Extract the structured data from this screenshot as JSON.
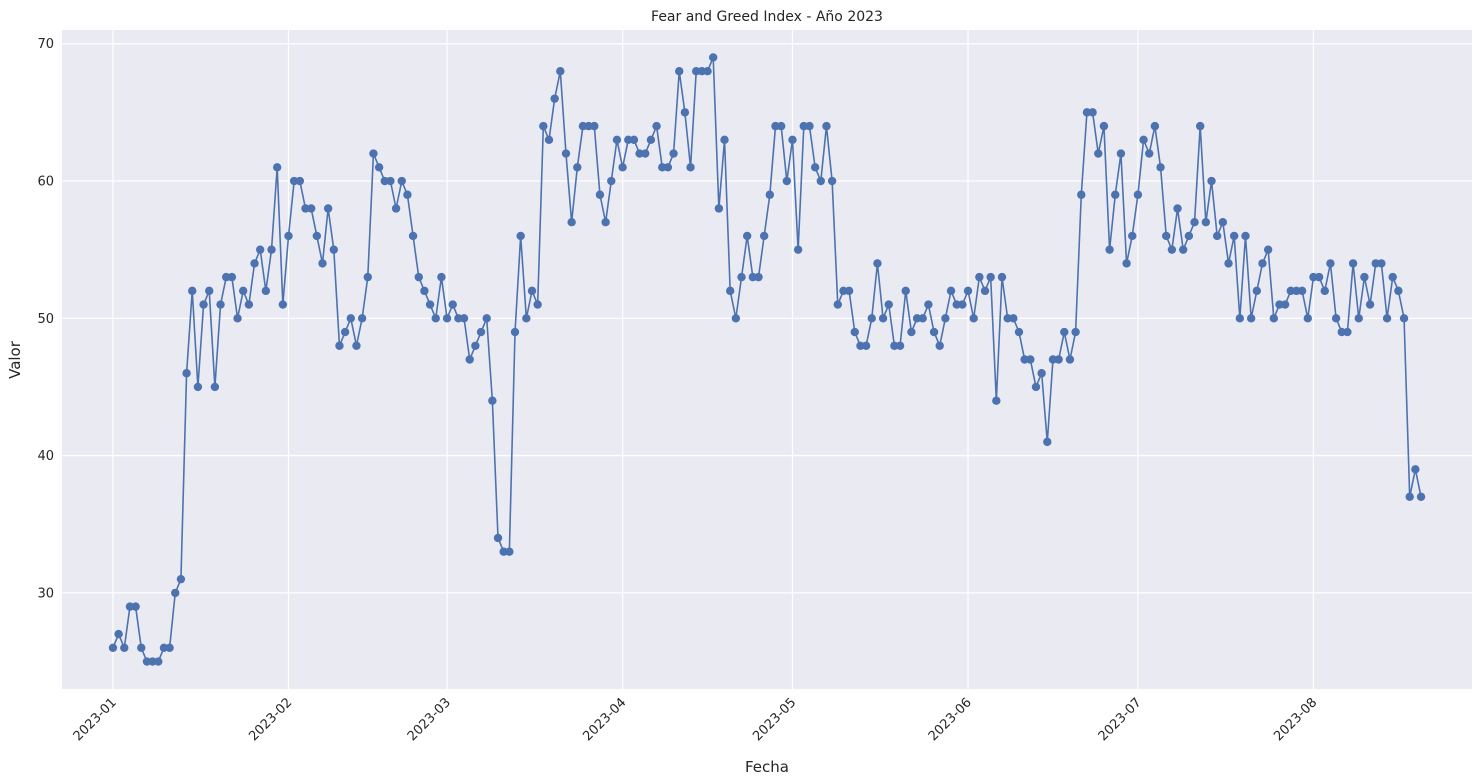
{
  "chart_data": {
    "type": "line",
    "title": "Fear and Greed Index - Año 2023",
    "xlabel": "Fecha",
    "ylabel": "Valor",
    "x_start": "2023-01-01",
    "x_end": "2023-08-20",
    "xlim": [
      "2022-12-23",
      "2023-08-29"
    ],
    "ylim": [
      23.0,
      71.0
    ],
    "y_ticks": [
      30,
      40,
      50,
      60,
      70
    ],
    "x_ticks": [
      {
        "date": "2023-01-01",
        "label": "2023-01"
      },
      {
        "date": "2023-02-01",
        "label": "2023-02"
      },
      {
        "date": "2023-03-01",
        "label": "2023-03"
      },
      {
        "date": "2023-04-01",
        "label": "2023-04"
      },
      {
        "date": "2023-05-01",
        "label": "2023-05"
      },
      {
        "date": "2023-06-01",
        "label": "2023-06"
      },
      {
        "date": "2023-07-01",
        "label": "2023-07"
      },
      {
        "date": "2023-08-01",
        "label": "2023-08"
      }
    ],
    "grid": true,
    "background": "#eaeaf2",
    "line_color": "#4c72b0",
    "marker": "circle",
    "values": [
      26,
      27,
      26,
      29,
      29,
      26,
      25,
      25,
      25,
      26,
      26,
      30,
      31,
      46,
      52,
      45,
      51,
      52,
      45,
      51,
      53,
      53,
      50,
      52,
      51,
      54,
      55,
      52,
      55,
      61,
      51,
      56,
      60,
      60,
      58,
      58,
      56,
      54,
      58,
      55,
      48,
      49,
      50,
      48,
      50,
      53,
      62,
      61,
      60,
      60,
      58,
      60,
      59,
      56,
      53,
      52,
      51,
      50,
      53,
      50,
      51,
      50,
      50,
      47,
      48,
      49,
      50,
      44,
      34,
      33,
      33,
      49,
      56,
      50,
      52,
      51,
      64,
      63,
      66,
      68,
      62,
      57,
      61,
      64,
      64,
      64,
      59,
      57,
      60,
      63,
      61,
      63,
      63,
      62,
      62,
      63,
      64,
      61,
      61,
      62,
      68,
      65,
      61,
      68,
      68,
      68,
      69,
      58,
      63,
      52,
      50,
      53,
      56,
      53,
      53,
      56,
      59,
      64,
      64,
      60,
      63,
      55,
      64,
      64,
      61,
      60,
      64,
      60,
      51,
      52,
      52,
      49,
      48,
      48,
      50,
      54,
      50,
      51,
      48,
      48,
      52,
      49,
      50,
      50,
      51,
      49,
      48,
      50,
      52,
      51,
      51,
      52,
      50,
      53,
      52,
      53,
      44,
      53,
      50,
      50,
      49,
      47,
      47,
      45,
      46,
      41,
      47,
      47,
      49,
      47,
      49,
      59,
      65,
      65,
      62,
      64,
      55,
      59,
      62,
      54,
      56,
      59,
      63,
      62,
      64,
      61,
      56,
      55,
      58,
      55,
      56,
      57,
      64,
      57,
      60,
      56,
      57,
      54,
      56,
      50,
      56,
      50,
      52,
      54,
      55,
      50,
      51,
      51,
      52,
      52,
      52,
      50,
      53,
      53,
      52,
      54,
      50,
      49,
      49,
      54,
      50,
      53,
      51,
      54,
      54,
      50,
      53,
      52,
      50,
      37,
      39,
      37
    ]
  }
}
